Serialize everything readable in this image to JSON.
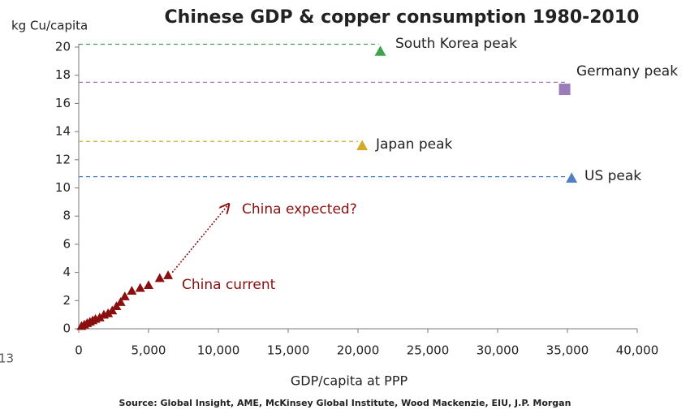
{
  "chart_data": {
    "type": "scatter",
    "title": "Chinese GDP & copper consumption 1980-2010",
    "y_label": "kg Cu/capita",
    "x_label": "GDP/capita at PPP",
    "source": "Source: Global Insight, AME, McKinsey Global Institute, Wood Mackenzie, EIU, J.P. Morgan",
    "slide_number": "13",
    "xlim": [
      0,
      40000
    ],
    "ylim": [
      0,
      20
    ],
    "xticks": [
      0,
      {
        "value": 5000,
        "label": "5,000"
      },
      {
        "value": 10000,
        "label": "10,000"
      },
      {
        "value": 15000,
        "label": "15,000"
      },
      {
        "value": 20000,
        "label": "20,000"
      },
      {
        "value": 25000,
        "label": "25,000"
      },
      {
        "value": 30000,
        "label": "30,000"
      },
      {
        "value": 35000,
        "label": "35,000"
      },
      {
        "value": 40000,
        "label": "40,000"
      }
    ],
    "yticks": [
      0,
      2,
      4,
      6,
      8,
      10,
      12,
      14,
      16,
      18,
      20
    ],
    "series": [
      {
        "name": "China current",
        "color": "#8b0f0f",
        "marker": "triangle",
        "x": [
          200,
          400,
          600,
          800,
          1000,
          1200,
          1500,
          1800,
          2100,
          2400,
          2700,
          3000,
          3300,
          3800,
          4400,
          5000,
          5800,
          6400
        ],
        "values": [
          0.2,
          0.3,
          0.4,
          0.5,
          0.6,
          0.7,
          0.8,
          1.0,
          1.1,
          1.3,
          1.6,
          1.9,
          2.3,
          2.7,
          2.9,
          3.1,
          3.6,
          3.8
        ]
      },
      {
        "name": "South Korea peak",
        "color": "#3fa34d",
        "marker": "triangle",
        "x": [
          21600
        ],
        "values": [
          19.7
        ]
      },
      {
        "name": "Germany peak",
        "color": "#9b7bb8",
        "marker": "square",
        "x": [
          34800
        ],
        "values": [
          17.0
        ]
      },
      {
        "name": "Japan peak",
        "color": "#d4aa2a",
        "marker": "triangle",
        "x": [
          20300
        ],
        "values": [
          13.0
        ]
      },
      {
        "name": "US peak",
        "color": "#4f7fc4",
        "marker": "triangle",
        "x": [
          35300
        ],
        "values": [
          10.7
        ]
      }
    ],
    "reference_lines": [
      {
        "y": 20.2,
        "x_end": 21500,
        "color": "#3fa34d"
      },
      {
        "y": 17.5,
        "x_end": 35000,
        "color": "#9b7bb8"
      },
      {
        "y": 13.3,
        "x_end": 20000,
        "color": "#d4aa2a"
      },
      {
        "y": 10.8,
        "x_end": 35000,
        "color": "#4f7fc4"
      }
    ],
    "arrow": {
      "label": "China expected?",
      "color": "#8b0f0f",
      "x": [
        6700,
        10700
      ],
      "y": [
        4.0,
        8.8
      ]
    }
  }
}
